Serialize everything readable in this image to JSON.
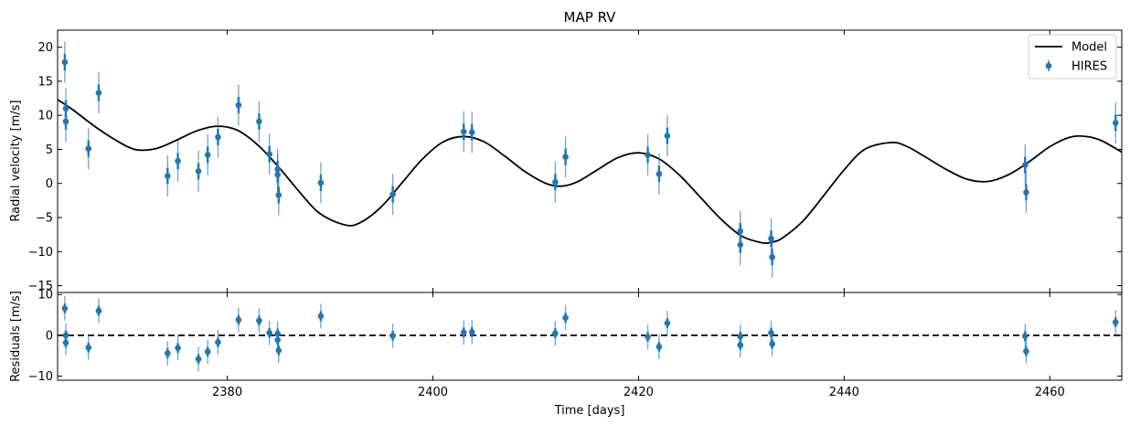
{
  "chart_data": [
    {
      "type": "scatter",
      "title": "MAP RV",
      "xlabel": "",
      "ylabel": "Radial velocity [m/s]",
      "xlim": [
        2363.5,
        2467
      ],
      "ylim": [
        -16,
        22.5
      ],
      "yticks": [
        -15,
        -10,
        -5,
        0,
        5,
        10,
        15,
        20
      ],
      "yticklabels": [
        "−15",
        "−10",
        "−5",
        "0",
        "5",
        "10",
        "15",
        "20"
      ],
      "xticks": [
        2380,
        2400,
        2420,
        2440,
        2460
      ],
      "legend": {
        "placement": "top-right",
        "entries": [
          "Model",
          "HIRES"
        ]
      },
      "model": {
        "name": "Model",
        "color": "#000000",
        "x": [
          2363.5,
          2365,
          2367,
          2369,
          2371,
          2373,
          2375,
          2377,
          2379,
          2381,
          2383,
          2385,
          2387,
          2389,
          2391.5,
          2393,
          2395,
          2397,
          2399,
          2401,
          2403,
          2405,
          2407,
          2409,
          2411,
          2412.5,
          2414,
          2416,
          2418,
          2420,
          2422,
          2424,
          2426,
          2428,
          2430,
          2432,
          2433,
          2434,
          2436,
          2438,
          2440,
          2442,
          2444.5,
          2446,
          2448,
          2450,
          2452,
          2454,
          2456,
          2458,
          2460,
          2462,
          2463.5,
          2465,
          2467
        ],
        "y": [
          12.3,
          10.8,
          8.5,
          6.5,
          5.0,
          5.1,
          6.3,
          7.7,
          8.4,
          7.8,
          5.6,
          2.4,
          -1.2,
          -4.4,
          -6.1,
          -5.7,
          -3.4,
          0.1,
          3.6,
          6.1,
          6.9,
          6.1,
          4.0,
          1.7,
          0.0,
          -0.4,
          0.2,
          2.0,
          3.8,
          4.5,
          3.6,
          1.2,
          -2.0,
          -5.2,
          -7.7,
          -8.7,
          -8.6,
          -8.0,
          -5.5,
          -1.8,
          2.0,
          5.0,
          6.0,
          5.5,
          3.8,
          2.0,
          0.6,
          0.3,
          1.3,
          3.2,
          5.4,
          6.8,
          6.9,
          6.3,
          4.6
        ]
      },
      "series": [
        {
          "name": "HIRES",
          "color": "#1f77b4",
          "x": [
            2364.2,
            2364.3,
            2364.3,
            2366.5,
            2367.5,
            2374.2,
            2375.2,
            2377.2,
            2378.1,
            2379.1,
            2381.1,
            2383.1,
            2384.1,
            2384.9,
            2384.9,
            2385.0,
            2389.1,
            2396.1,
            2403.0,
            2403.8,
            2411.9,
            2412.9,
            2420.9,
            2422.0,
            2422.8,
            2429.9,
            2429.9,
            2432.9,
            2433.0,
            2457.6,
            2457.7,
            2466.4
          ],
          "y": [
            17.8,
            11.0,
            9.1,
            5.1,
            13.3,
            1.1,
            3.3,
            1.8,
            4.2,
            6.8,
            11.5,
            9.1,
            4.3,
            2.1,
            1.3,
            -1.7,
            0.1,
            -1.6,
            7.6,
            7.5,
            0.2,
            3.9,
            4.2,
            1.4,
            7.0,
            -7.0,
            -9.0,
            -8.1,
            -10.8,
            2.7,
            -1.3,
            8.9
          ],
          "err": [
            3.0,
            3.0,
            3.0,
            3.0,
            3.0,
            3.0,
            3.0,
            3.0,
            3.0,
            3.0,
            3.0,
            3.0,
            3.0,
            3.0,
            3.0,
            3.0,
            3.0,
            3.0,
            3.0,
            3.0,
            3.0,
            3.0,
            3.0,
            3.0,
            3.0,
            3.0,
            3.0,
            3.0,
            3.0,
            3.0,
            3.0,
            3.0
          ]
        }
      ]
    },
    {
      "type": "scatter",
      "title": "",
      "xlabel": "Time [days]",
      "ylabel": "Residuals [m/s]",
      "xlim": [
        2363.5,
        2467
      ],
      "ylim": [
        -11,
        10.5
      ],
      "yticks": [
        -10,
        0,
        10
      ],
      "yticklabels": [
        "−10",
        "0",
        "10"
      ],
      "xticks": [
        2380,
        2400,
        2420,
        2440,
        2460
      ],
      "xticklabels": [
        "2380",
        "2400",
        "2420",
        "2440",
        "2460"
      ],
      "zero_line": {
        "y": 0,
        "style": "dashed",
        "color": "#000000"
      },
      "series": [
        {
          "name": "",
          "color": "#1f77b4",
          "x": [
            2364.2,
            2364.3,
            2364.3,
            2366.5,
            2367.5,
            2374.2,
            2375.2,
            2377.2,
            2378.1,
            2379.1,
            2381.1,
            2383.1,
            2384.1,
            2384.9,
            2384.9,
            2385.0,
            2389.1,
            2396.1,
            2403.0,
            2403.8,
            2411.9,
            2412.9,
            2420.9,
            2422.0,
            2422.8,
            2429.9,
            2429.9,
            2432.9,
            2433.0,
            2457.6,
            2457.7,
            2466.4
          ],
          "y": [
            6.6,
            0.0,
            -1.8,
            -3.0,
            6.0,
            -4.4,
            -3.1,
            -5.8,
            -4.0,
            -1.7,
            3.8,
            3.6,
            0.6,
            0.4,
            -1.1,
            -3.7,
            4.7,
            -0.1,
            0.7,
            0.8,
            0.5,
            4.3,
            -0.4,
            -2.8,
            3.0,
            -0.3,
            -2.4,
            0.6,
            -2.1,
            -0.2,
            -3.9,
            3.2
          ],
          "err": [
            3.0,
            3.0,
            3.0,
            3.0,
            3.0,
            3.0,
            3.0,
            3.0,
            3.0,
            3.0,
            3.0,
            3.0,
            3.0,
            3.0,
            3.0,
            3.0,
            3.0,
            3.0,
            3.0,
            3.0,
            3.0,
            3.0,
            3.0,
            3.0,
            3.0,
            3.0,
            3.0,
            3.0,
            3.0,
            3.0,
            3.0,
            3.0
          ]
        }
      ]
    }
  ]
}
